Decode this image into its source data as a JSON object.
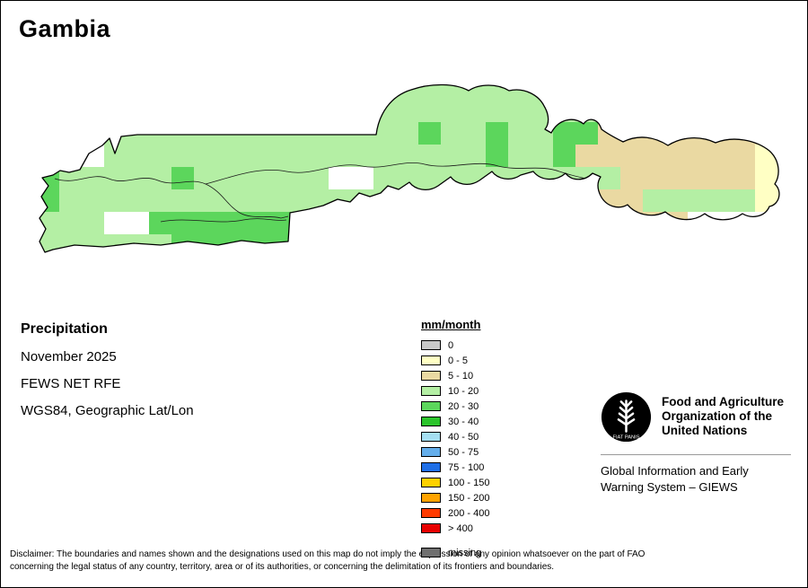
{
  "title": "Gambia",
  "info": {
    "heading": "Precipitation",
    "lines": [
      "November 2025",
      "FEWS NET RFE",
      "WGS84, Geographic Lat/Lon"
    ]
  },
  "legend": {
    "title": "mm/month",
    "entries": [
      {
        "label": "0",
        "color": "#c9c9c9"
      },
      {
        "label": "0 - 5",
        "color": "#ffffc4"
      },
      {
        "label": "5 - 10",
        "color": "#ead9a2"
      },
      {
        "label": "10 - 20",
        "color": "#b4efa4"
      },
      {
        "label": "20 - 30",
        "color": "#5cd65c"
      },
      {
        "label": "30 - 40",
        "color": "#2cc42c"
      },
      {
        "label": "40 - 50",
        "color": "#a5dff2"
      },
      {
        "label": "50 - 75",
        "color": "#64aeeb"
      },
      {
        "label": "75 - 100",
        "color": "#1e6ee6"
      },
      {
        "label": "100 - 150",
        "color": "#ffd100"
      },
      {
        "label": "150 - 200",
        "color": "#ffa300"
      },
      {
        "label": "200 - 400",
        "color": "#ff3b00"
      },
      {
        "label": "> 400",
        "color": "#e80000"
      },
      {
        "label": "missing",
        "color": "#6f6f6f"
      }
    ]
  },
  "fao": {
    "org_lines": [
      "Food and Agriculture",
      "Organization of the",
      "United Nations"
    ],
    "giews_lines": [
      "Global Information and Early",
      "Warning System – GIEWS"
    ],
    "logo_motto": "FIAT PANIS"
  },
  "disclaimer": {
    "lines": [
      "Disclaimer: The boundaries and names shown and the designations used on this map do not imply the expression of any opinion whatsoever on the part of FAO",
      "concerning the legal status of any country, territory, area or of its authorities, or concerning the delimitation of its frontiers and boundaries."
    ]
  },
  "map_data": {
    "region": "Gambia",
    "units": "mm/month",
    "origin": [
      40,
      85
    ],
    "cell_size": 25,
    "cell_colors": {
      "G": "#b4efa4",
      "g": "#5cd65c",
      "d": "#2cc42c",
      "w": "#ffffff",
      "t": "#ead9a2",
      "y": "#ffffc4"
    },
    "cell_legend_buckets": {
      "G": "10 - 20",
      "g": "20 - 30",
      "d": "30 - 40",
      "t": "5 - 10",
      "y": "0 - 5"
    },
    "grid": [
      "...............GGGGGGGG...........",
      "...............GGGGGGGGGG.........",
      "..GGGGGGGGGGGGGGGgGGgGGggttttttttt",
      "gGwGGGGGGGGGGGGGGGGGgGGgttttttttyy",
      "gGGGGGgGGGGGGwwGGGGGGGGGGGttttttyy",
      "gGGGGGGGGGGGGGGGGGGGGGGGtttGGGGGyy",
      "GGGwwgggggggg.............ttt.....",
      "GGGGGGgggggg......................"
    ]
  }
}
